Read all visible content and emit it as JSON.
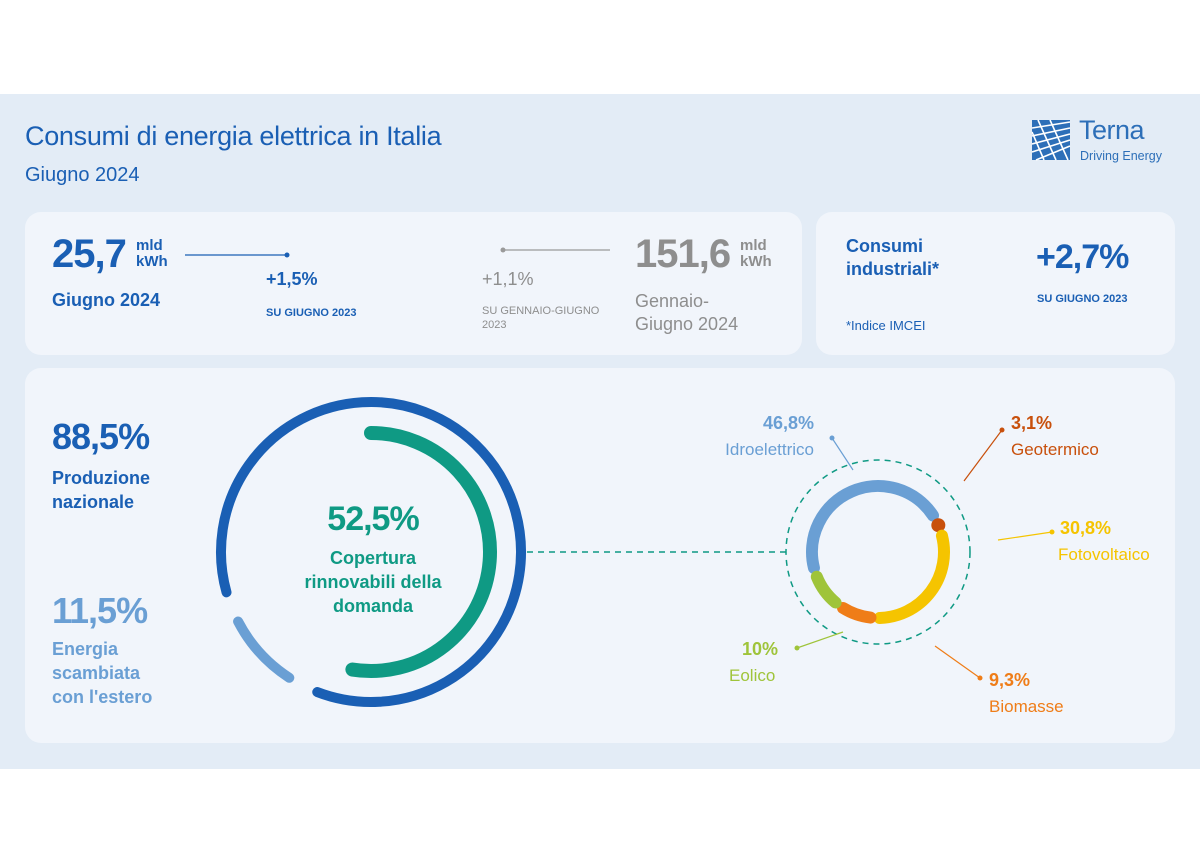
{
  "header": {
    "title": "Consumi di energia elettrica in Italia",
    "subtitle": "Giugno 2024",
    "logo_name": "Terna",
    "logo_tagline": "Driving Energy"
  },
  "summary": {
    "monthly": {
      "value": "25,7",
      "unit_line1": "mld",
      "unit_line2": "kWh",
      "label": "Giugno 2024",
      "change": "+1,5%",
      "change_ref": "SU GIUGNO 2023"
    },
    "ytd": {
      "value": "151,6",
      "unit_line1": "mld",
      "unit_line2": "kWh",
      "label_line1": "Gennaio-",
      "label_line2": "Giugno 2024",
      "change": "+1,1%",
      "change_ref": "SU GENNAIO-GIUGNO 2023"
    },
    "industrial": {
      "label_line1": "Consumi",
      "label_line2": "industriali*",
      "change": "+2,7%",
      "change_ref": "SU GIUGNO 2023",
      "footnote": "*Indice IMCEI"
    }
  },
  "coverage": {
    "national": {
      "value": "88,5%",
      "label_line1": "Produzione",
      "label_line2": "nazionale"
    },
    "foreign": {
      "value": "11,5%",
      "label_line1": "Energia",
      "label_line2": "scambiata",
      "label_line3": "con l'estero"
    },
    "renewables": {
      "value": "52,5%",
      "label_line1": "Copertura",
      "label_line2": "rinnovabili della",
      "label_line3": "domanda"
    }
  },
  "colors": {
    "dark_blue": "#1a5fb4",
    "light_blue": "#6a9fd4",
    "teal": "#0f9a84",
    "hydro": "#6a9fd4",
    "geothermal": "#c8500c",
    "solar": "#f5c400",
    "biomass": "#ef7d18",
    "wind": "#9fc43a"
  },
  "chart_data": [
    {
      "type": "pie",
      "title": "",
      "categories": [
        "Produzione nazionale",
        "Energia scambiata con l'estero"
      ],
      "values": [
        88.5,
        11.5
      ],
      "renewable_share_of_demand": 52.5
    },
    {
      "type": "pie",
      "title": "",
      "categories": [
        "Idroelettrico",
        "Geotermico",
        "Fotovoltaico",
        "Biomasse",
        "Eolico"
      ],
      "values": [
        46.8,
        3.1,
        30.8,
        9.3,
        10
      ],
      "labels": [
        "46,8%",
        "3,1%",
        "30,8%",
        "9,3%",
        "10%"
      ]
    }
  ]
}
